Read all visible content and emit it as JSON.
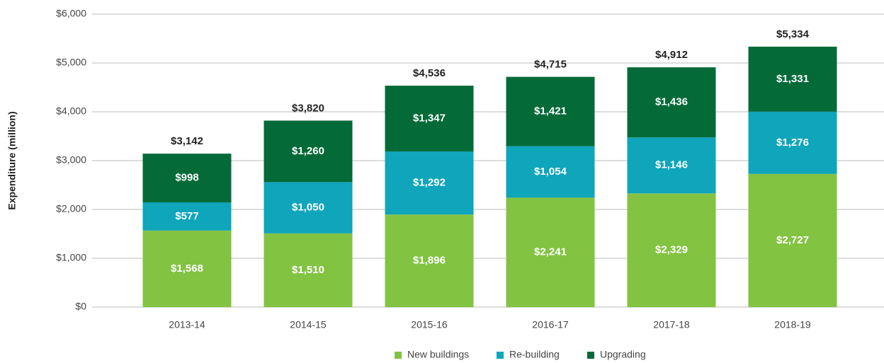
{
  "chart_data": {
    "type": "stacked_bar",
    "y_label": "Expenditure (million)",
    "categories": [
      "2013-14",
      "2014-15",
      "2015-16",
      "2016-17",
      "2017-18",
      "2018-19"
    ],
    "series": [
      {
        "name": "New buildings",
        "color": "#82c341",
        "values": [
          1568,
          1510,
          1896,
          2241,
          2329,
          2727
        ],
        "value_labels": [
          "$1,568",
          "$1,510",
          "$1,896",
          "$2,241",
          "$2,329",
          "$2,727"
        ]
      },
      {
        "name": "Re-building",
        "color": "#0fa5bb",
        "values": [
          577,
          1050,
          1292,
          1054,
          1146,
          1276
        ],
        "value_labels": [
          "$577",
          "$1,050",
          "$1,292",
          "$1,054",
          "$1,146",
          "$1,276"
        ]
      },
      {
        "name": "Upgrading",
        "color": "#046a38",
        "values": [
          998,
          1260,
          1347,
          1421,
          1436,
          1331
        ],
        "value_labels": [
          "$998",
          "$1,260",
          "$1,347",
          "$1,421",
          "$1,436",
          "$1,331"
        ]
      }
    ],
    "totals": [
      3142,
      3820,
      4536,
      4715,
      4912,
      5334
    ],
    "total_labels": [
      "$3,142",
      "$3,820",
      "$4,536",
      "$4,715",
      "$4,912",
      "$5,334"
    ],
    "ylim": [
      0,
      6000
    ],
    "yticks": [
      {
        "value": 0,
        "label": "$0"
      },
      {
        "value": 1000,
        "label": "$1,000"
      },
      {
        "value": 2000,
        "label": "$2,000"
      },
      {
        "value": 3000,
        "label": "$3,000"
      },
      {
        "value": 4000,
        "label": "$4,000"
      },
      {
        "value": 5000,
        "label": "$5,000"
      },
      {
        "value": 6000,
        "label": "$6,000"
      }
    ],
    "grid": true,
    "legend": "bottom"
  }
}
